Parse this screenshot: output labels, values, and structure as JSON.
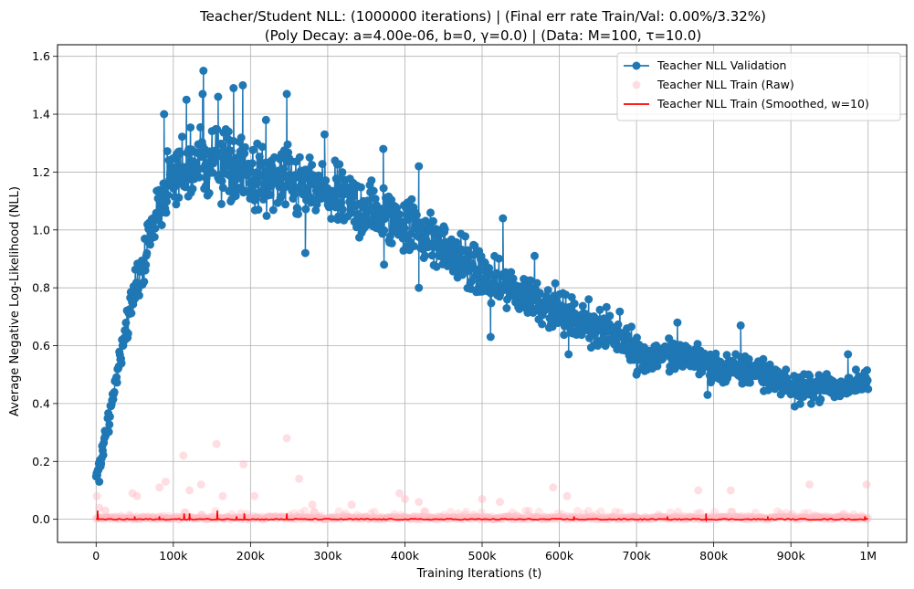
{
  "chart_data": {
    "type": "line",
    "title_line1": "Teacher/Student NLL: (1000000 iterations) |  (Final err rate Train/Val: 0.00%/3.32%)",
    "title_line2": "(Poly Decay: a=4.00e-06, b=0, γ=0.0) | (Data: M=100, τ=10.0)",
    "xlabel": "Training Iterations (t)",
    "ylabel": "Average Negative Log-Likelihood (NLL)",
    "xlim": [
      -50000,
      1050000
    ],
    "ylim": [
      -0.08,
      1.64
    ],
    "x_ticks": [
      {
        "v": 0,
        "label": "0"
      },
      {
        "v": 100000,
        "label": "100k"
      },
      {
        "v": 200000,
        "label": "200k"
      },
      {
        "v": 300000,
        "label": "300k"
      },
      {
        "v": 400000,
        "label": "400k"
      },
      {
        "v": 500000,
        "label": "500k"
      },
      {
        "v": 600000,
        "label": "600k"
      },
      {
        "v": 700000,
        "label": "700k"
      },
      {
        "v": 800000,
        "label": "800k"
      },
      {
        "v": 900000,
        "label": "900k"
      },
      {
        "v": 1000000,
        "label": "1M"
      }
    ],
    "y_ticks": [
      {
        "v": 0.0,
        "label": "0.0"
      },
      {
        "v": 0.2,
        "label": "0.2"
      },
      {
        "v": 0.4,
        "label": "0.4"
      },
      {
        "v": 0.6,
        "label": "0.6"
      },
      {
        "v": 0.8,
        "label": "0.8"
      },
      {
        "v": 1.0,
        "label": "1.0"
      },
      {
        "v": 1.2,
        "label": "1.2"
      },
      {
        "v": 1.4,
        "label": "1.4"
      },
      {
        "v": 1.6,
        "label": "1.6"
      }
    ],
    "grid": true,
    "legend_position": "top-right",
    "series": [
      {
        "name": "Teacher NLL Validation",
        "style": "line-marker",
        "color": "#1f77b4",
        "x": [
          0,
          10000,
          20000,
          30000,
          40000,
          50000,
          60000,
          70000,
          80000,
          90000,
          100000,
          110000,
          120000,
          130000,
          140000,
          150000,
          160000,
          170000,
          180000,
          190000,
          200000,
          210000,
          220000,
          230000,
          240000,
          250000,
          260000,
          270000,
          280000,
          290000,
          300000,
          310000,
          320000,
          330000,
          340000,
          350000,
          360000,
          370000,
          380000,
          390000,
          400000,
          410000,
          420000,
          430000,
          440000,
          450000,
          460000,
          470000,
          480000,
          490000,
          500000,
          510000,
          520000,
          530000,
          540000,
          550000,
          560000,
          570000,
          580000,
          590000,
          600000,
          610000,
          620000,
          630000,
          640000,
          650000,
          660000,
          670000,
          680000,
          690000,
          700000,
          710000,
          720000,
          730000,
          740000,
          750000,
          760000,
          770000,
          780000,
          790000,
          800000,
          810000,
          820000,
          830000,
          840000,
          850000,
          860000,
          870000,
          880000,
          890000,
          900000,
          910000,
          920000,
          930000,
          940000,
          950000,
          960000,
          970000,
          980000,
          990000,
          1000000
        ],
        "y": [
          0.14,
          0.25,
          0.4,
          0.55,
          0.68,
          0.78,
          0.88,
          0.98,
          1.08,
          1.14,
          1.17,
          1.2,
          1.22,
          1.23,
          1.24,
          1.24,
          1.23,
          1.22,
          1.21,
          1.2,
          1.18,
          1.17,
          1.16,
          1.16,
          1.17,
          1.16,
          1.15,
          1.15,
          1.14,
          1.13,
          1.12,
          1.11,
          1.1,
          1.09,
          1.08,
          1.07,
          1.06,
          1.05,
          1.04,
          1.04,
          1.03,
          1.02,
          1.0,
          0.98,
          0.96,
          0.94,
          0.92,
          0.9,
          0.88,
          0.86,
          0.84,
          0.82,
          0.81,
          0.8,
          0.79,
          0.78,
          0.77,
          0.76,
          0.75,
          0.74,
          0.72,
          0.7,
          0.69,
          0.68,
          0.67,
          0.66,
          0.65,
          0.64,
          0.63,
          0.62,
          0.58,
          0.56,
          0.56,
          0.57,
          0.57,
          0.56,
          0.56,
          0.56,
          0.55,
          0.54,
          0.53,
          0.52,
          0.52,
          0.51,
          0.51,
          0.52,
          0.51,
          0.5,
          0.49,
          0.47,
          0.46,
          0.45,
          0.45,
          0.46,
          0.46,
          0.46,
          0.45,
          0.46,
          0.47,
          0.48,
          0.48
        ],
        "noise": [
          0.02,
          0.03,
          0.04,
          0.04,
          0.05,
          0.06,
          0.07,
          0.08,
          0.09,
          0.1,
          0.11,
          0.11,
          0.12,
          0.12,
          0.12,
          0.12,
          0.12,
          0.12,
          0.12,
          0.11,
          0.11,
          0.11,
          0.11,
          0.11,
          0.11,
          0.11,
          0.11,
          0.1,
          0.1,
          0.1,
          0.1,
          0.1,
          0.1,
          0.1,
          0.1,
          0.1,
          0.1,
          0.1,
          0.1,
          0.09,
          0.09,
          0.09,
          0.09,
          0.09,
          0.09,
          0.08,
          0.08,
          0.08,
          0.08,
          0.08,
          0.08,
          0.08,
          0.07,
          0.07,
          0.07,
          0.07,
          0.07,
          0.07,
          0.07,
          0.07,
          0.06,
          0.06,
          0.06,
          0.06,
          0.06,
          0.06,
          0.06,
          0.06,
          0.06,
          0.06,
          0.05,
          0.05,
          0.05,
          0.05,
          0.05,
          0.05,
          0.05,
          0.05,
          0.05,
          0.05,
          0.05,
          0.05,
          0.05,
          0.05,
          0.05,
          0.05,
          0.05,
          0.05,
          0.04,
          0.04,
          0.04,
          0.04,
          0.04,
          0.04,
          0.04,
          0.04,
          0.04,
          0.04,
          0.04,
          0.04,
          0.04
        ],
        "peaks": [
          {
            "x": 88000,
            "y": 1.4
          },
          {
            "x": 117000,
            "y": 1.45
          },
          {
            "x": 138000,
            "y": 1.47
          },
          {
            "x": 139000,
            "y": 1.55
          },
          {
            "x": 158000,
            "y": 1.46
          },
          {
            "x": 178000,
            "y": 1.49
          },
          {
            "x": 190000,
            "y": 1.5
          },
          {
            "x": 220000,
            "y": 1.38
          },
          {
            "x": 247000,
            "y": 1.47
          },
          {
            "x": 296000,
            "y": 1.33
          },
          {
            "x": 372000,
            "y": 1.28
          },
          {
            "x": 418000,
            "y": 1.22
          },
          {
            "x": 527000,
            "y": 1.04
          },
          {
            "x": 568000,
            "y": 0.91
          },
          {
            "x": 638000,
            "y": 0.76
          },
          {
            "x": 753000,
            "y": 0.68
          },
          {
            "x": 835000,
            "y": 0.67
          },
          {
            "x": 974000,
            "y": 0.57
          }
        ],
        "troughs": [
          {
            "x": 4000,
            "y": 0.13
          },
          {
            "x": 271000,
            "y": 0.92
          },
          {
            "x": 373000,
            "y": 0.88
          },
          {
            "x": 418000,
            "y": 0.8
          },
          {
            "x": 511000,
            "y": 0.63
          },
          {
            "x": 612000,
            "y": 0.57
          },
          {
            "x": 700000,
            "y": 0.5
          },
          {
            "x": 792000,
            "y": 0.43
          },
          {
            "x": 905000,
            "y": 0.39
          }
        ]
      },
      {
        "name": "Teacher NLL Train (Raw)",
        "style": "scatter",
        "color": "#ffb6c1",
        "base": 0.0,
        "noise": 0.012,
        "outliers": [
          {
            "x": 1000,
            "y": 0.08
          },
          {
            "x": 4000,
            "y": 0.04
          },
          {
            "x": 12000,
            "y": 0.03
          },
          {
            "x": 47000,
            "y": 0.09
          },
          {
            "x": 53000,
            "y": 0.08
          },
          {
            "x": 82000,
            "y": 0.11
          },
          {
            "x": 90000,
            "y": 0.13
          },
          {
            "x": 113000,
            "y": 0.22
          },
          {
            "x": 121000,
            "y": 0.1
          },
          {
            "x": 136000,
            "y": 0.12
          },
          {
            "x": 156000,
            "y": 0.26
          },
          {
            "x": 164000,
            "y": 0.08
          },
          {
            "x": 191000,
            "y": 0.19
          },
          {
            "x": 205000,
            "y": 0.08
          },
          {
            "x": 247000,
            "y": 0.28
          },
          {
            "x": 263000,
            "y": 0.14
          },
          {
            "x": 280000,
            "y": 0.05
          },
          {
            "x": 331000,
            "y": 0.05
          },
          {
            "x": 393000,
            "y": 0.09
          },
          {
            "x": 400000,
            "y": 0.07
          },
          {
            "x": 418000,
            "y": 0.06
          },
          {
            "x": 500000,
            "y": 0.07
          },
          {
            "x": 523000,
            "y": 0.06
          },
          {
            "x": 592000,
            "y": 0.11
          },
          {
            "x": 610000,
            "y": 0.08
          },
          {
            "x": 780000,
            "y": 0.1
          },
          {
            "x": 822000,
            "y": 0.1
          },
          {
            "x": 924000,
            "y": 0.12
          },
          {
            "x": 998000,
            "y": 0.12
          }
        ]
      },
      {
        "name": "Teacher NLL Train (Smoothed, w=10)",
        "style": "line",
        "color": "#ff0000",
        "base": 0.0,
        "spikes": [
          {
            "x": 2000,
            "y": 0.03
          },
          {
            "x": 50000,
            "y": 0.01
          },
          {
            "x": 82000,
            "y": 0.01
          },
          {
            "x": 114000,
            "y": 0.02
          },
          {
            "x": 121000,
            "y": 0.02
          },
          {
            "x": 157000,
            "y": 0.03
          },
          {
            "x": 182000,
            "y": 0.01
          },
          {
            "x": 192000,
            "y": 0.02
          },
          {
            "x": 247000,
            "y": 0.02
          },
          {
            "x": 619000,
            "y": 0.01
          },
          {
            "x": 740000,
            "y": 0.01
          },
          {
            "x": 790000,
            "y": 0.02
          },
          {
            "x": 870000,
            "y": 0.01
          },
          {
            "x": 996000,
            "y": 0.01
          }
        ]
      }
    ]
  }
}
